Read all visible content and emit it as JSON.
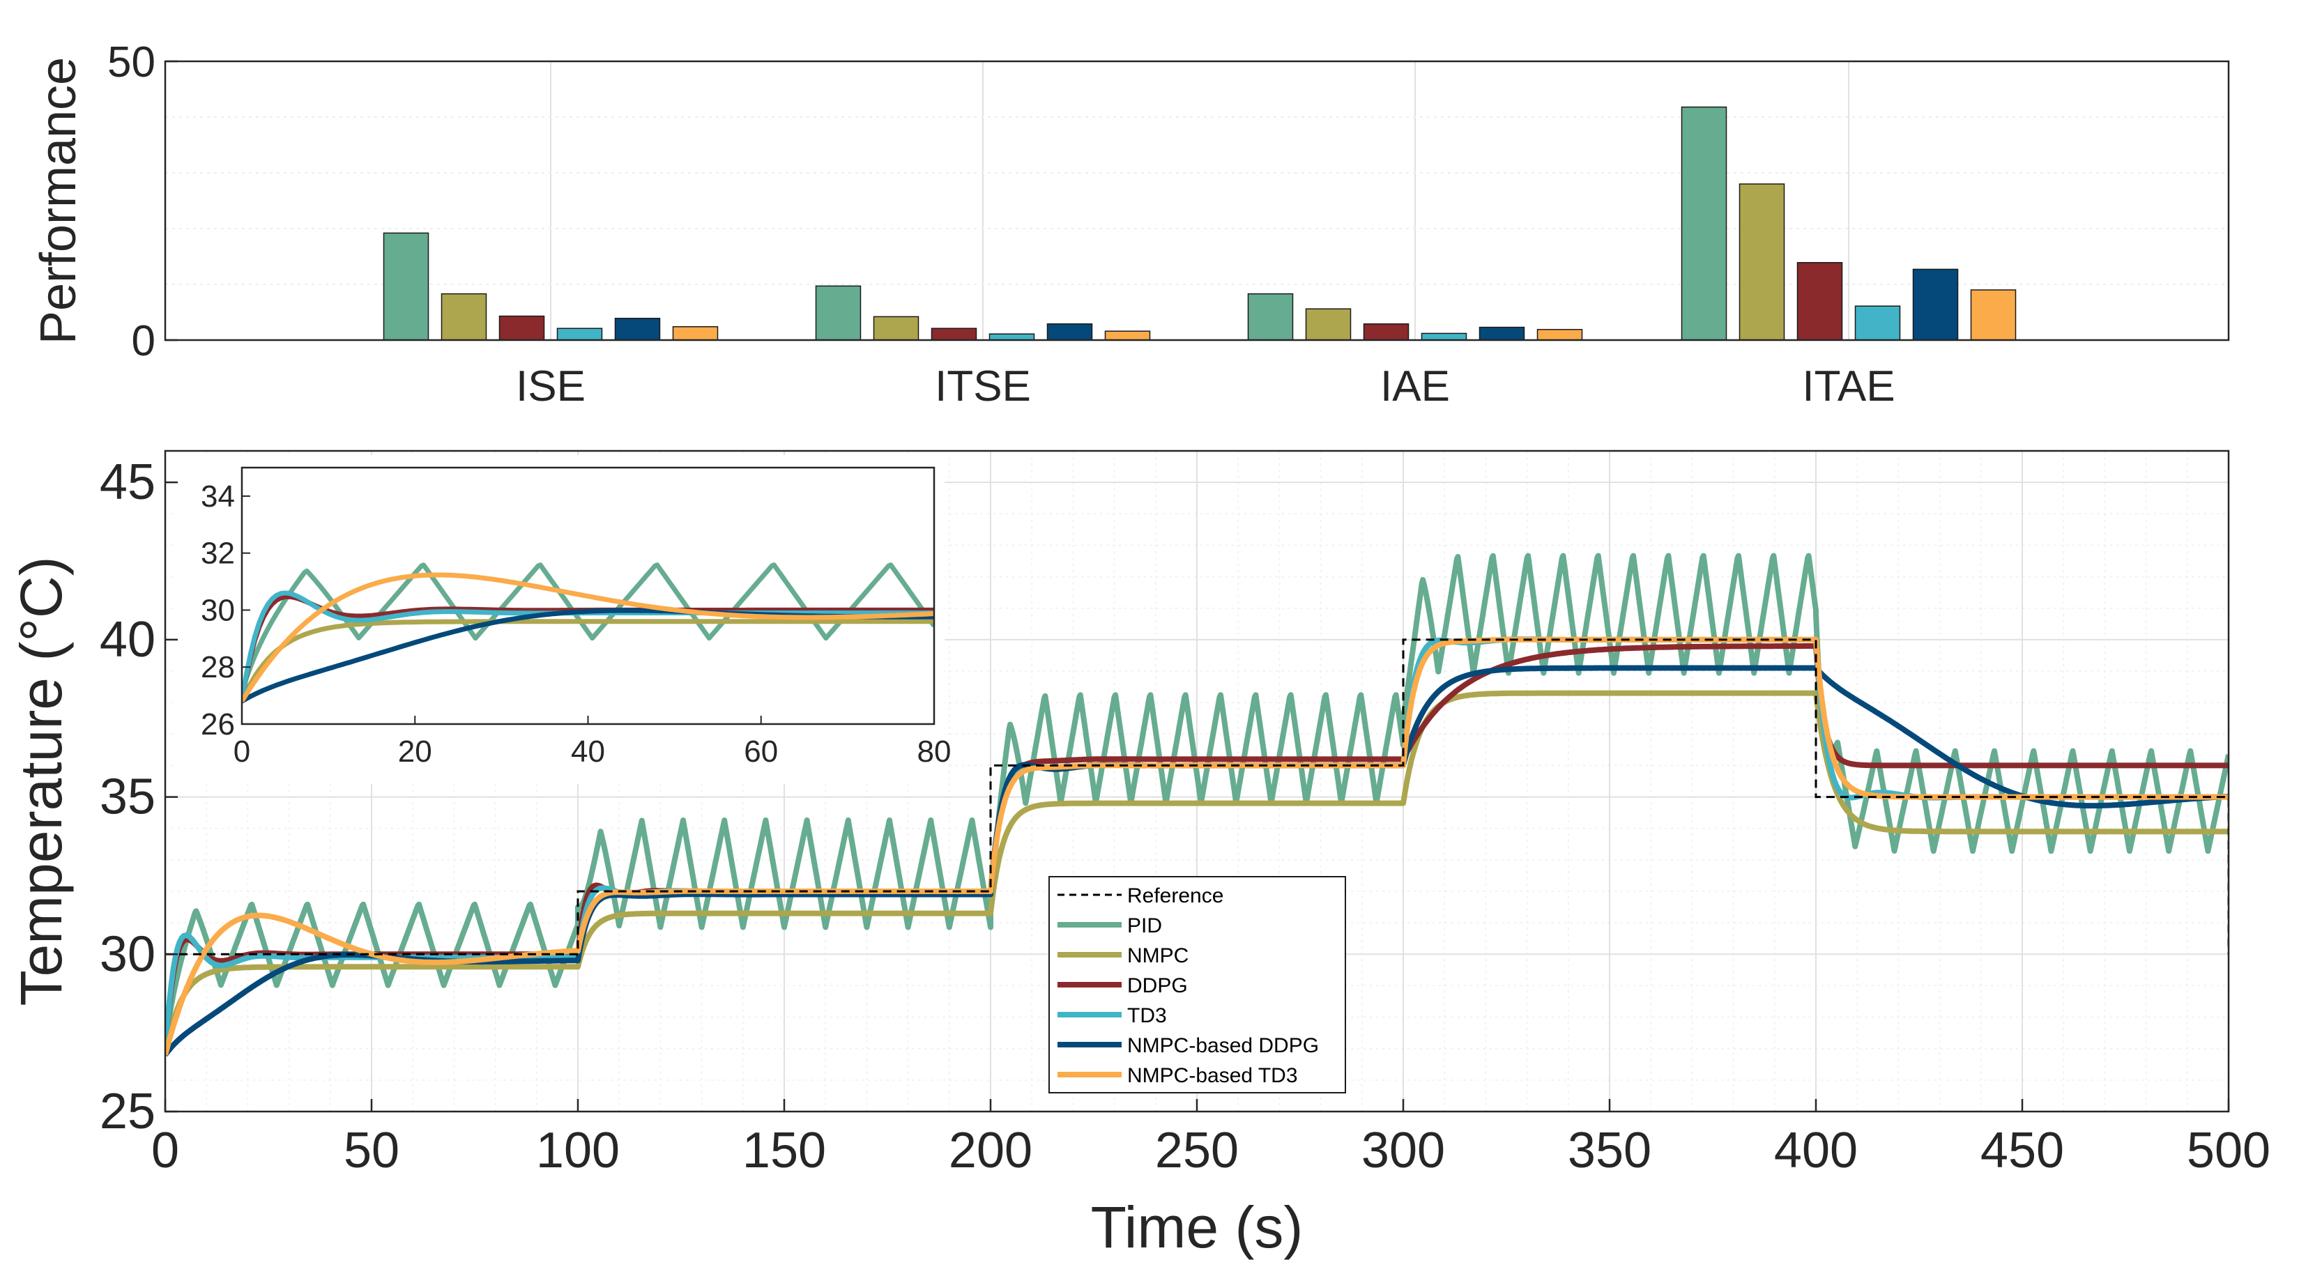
{
  "colors": {
    "axis": "#262626",
    "grid": "#e1e1e1",
    "gridMinor": "#eeeeee",
    "reference": "#000000"
  },
  "chart_data": [
    {
      "type": "bar",
      "title": "",
      "ylabel": "Performance",
      "xlabel": "",
      "ylim": [
        0,
        50
      ],
      "yticks": [
        "0",
        "50"
      ],
      "categories": [
        "ISE",
        "ITSE",
        "IAE",
        "ITAE"
      ],
      "grid": true,
      "legend": "none",
      "series": [
        {
          "name": "PID",
          "color": "#66ac90",
          "values": [
            19.2,
            9.7,
            8.3,
            41.8
          ]
        },
        {
          "name": "NMPC",
          "color": "#ada64e",
          "values": [
            8.3,
            4.2,
            5.6,
            28
          ]
        },
        {
          "name": "DDPG",
          "color": "#8a2a2d",
          "values": [
            4.3,
            2.1,
            2.9,
            13.9
          ]
        },
        {
          "name": "TD3",
          "color": "#41b4c8",
          "values": [
            2.1,
            1.1,
            1.2,
            6.1
          ]
        },
        {
          "name": "NMPC-based DDPG",
          "color": "#04497a",
          "values": [
            3.9,
            2.9,
            2.3,
            12.7
          ]
        },
        {
          "name": "NMPC-based TD3",
          "color": "#fbab4a",
          "values": [
            2.4,
            1.6,
            1.9,
            9.0
          ]
        }
      ]
    },
    {
      "type": "line",
      "title": "",
      "xlabel": "Time (s)",
      "ylabel": "Temperature (°C)",
      "xlim": [
        0,
        500
      ],
      "ylim": [
        25,
        46
      ],
      "xticks": [
        "0",
        "50",
        "100",
        "150",
        "200",
        "250",
        "300",
        "350",
        "400",
        "450",
        "500"
      ],
      "yticks": [
        "25",
        "30",
        "35",
        "40",
        "45"
      ],
      "grid": true,
      "legend": "center",
      "series": [
        {
          "name": "Reference",
          "style": "dashed",
          "color": "#000000",
          "x": [
            0,
            100,
            100,
            200,
            200,
            300,
            300,
            400,
            400,
            500,
            500
          ],
          "y": [
            30,
            30,
            32,
            32,
            36,
            36,
            40,
            40,
            35,
            35,
            30
          ]
        },
        {
          "name": "PID",
          "color": "#66ac90",
          "description_free": true,
          "setpoints": [
            30,
            32,
            36,
            40,
            35
          ],
          "offset": [
            0.9,
            1.6,
            1.6,
            2.4,
            0.6
          ],
          "amplitude": [
            2.6,
            3.4,
            3.5,
            3.8,
            3.2
          ],
          "period": [
            13.5,
            10,
            8.5,
            8.5,
            9.5
          ]
        },
        {
          "name": "NMPC",
          "color": "#ada64e",
          "levels": [
            29.6,
            31.3,
            34.8,
            38.3,
            33.9
          ]
        },
        {
          "name": "DDPG",
          "color": "#8a2a2d",
          "levels": [
            30.0,
            32.0,
            36.2,
            39.8,
            36.0
          ]
        },
        {
          "name": "TD3",
          "color": "#41b4c8",
          "levels": [
            29.9,
            32.0,
            36.0,
            40.0,
            35.0
          ]
        },
        {
          "name": "NMPC-based DDPG",
          "color": "#04497a",
          "levels": [
            29.8,
            31.9,
            36.0,
            39.1,
            35.0
          ]
        },
        {
          "name": "NMPC-based TD3",
          "color": "#fbab4a",
          "levels": [
            30.1,
            32.0,
            36.0,
            40.0,
            35.0
          ]
        }
      ]
    },
    {
      "type": "line",
      "title": "",
      "xlabel": "",
      "ylabel": "",
      "xlim": [
        0,
        80
      ],
      "ylim": [
        26,
        35
      ],
      "xticks": [
        "0",
        "20",
        "40",
        "60",
        "80"
      ],
      "yticks": [
        "26",
        "28",
        "30",
        "32",
        "34"
      ],
      "grid": false,
      "legend": "none"
    }
  ],
  "legend": {
    "items": [
      {
        "label": "Reference",
        "color": "#000000",
        "dashed": true
      },
      {
        "label": "PID",
        "color": "#66ac90",
        "dashed": false
      },
      {
        "label": "NMPC",
        "color": "#ada64e",
        "dashed": false
      },
      {
        "label": "DDPG",
        "color": "#8a2a2d",
        "dashed": false
      },
      {
        "label": "TD3",
        "color": "#41b4c8",
        "dashed": false
      },
      {
        "label": "NMPC-based DDPG",
        "color": "#04497a",
        "dashed": false
      },
      {
        "label": "NMPC-based TD3",
        "color": "#fbab4a",
        "dashed": false
      }
    ]
  }
}
